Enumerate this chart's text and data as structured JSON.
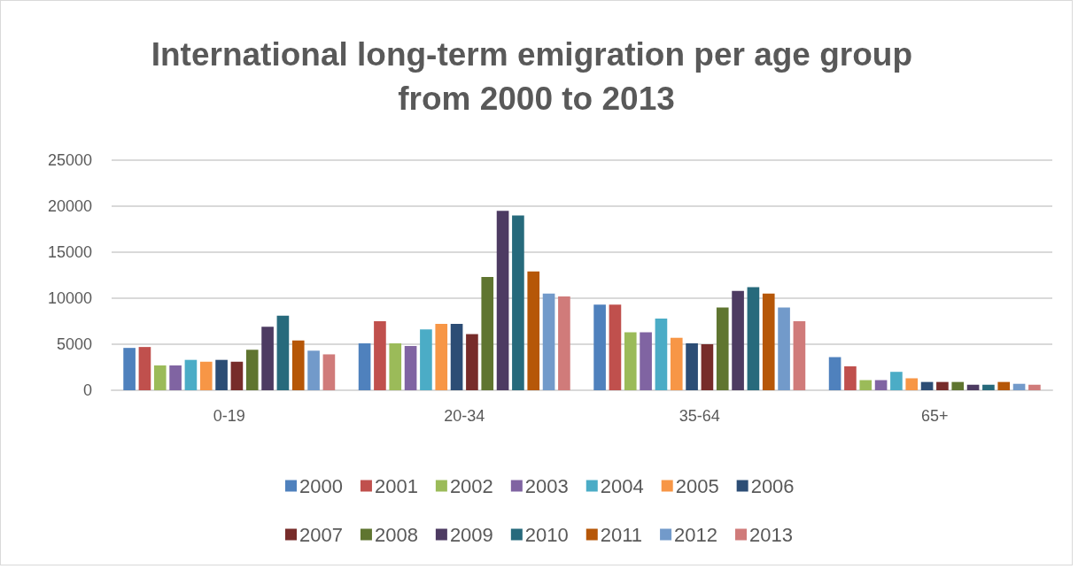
{
  "chart_data": {
    "type": "bar",
    "title": "International long-term emigration per age group from 2000 to 2013",
    "categories": [
      "0-19",
      "20-34",
      "35-64",
      "65+"
    ],
    "series": [
      {
        "name": "2000",
        "color": "#4f81bd",
        "values": [
          4600,
          5100,
          9300,
          3600
        ]
      },
      {
        "name": "2001",
        "color": "#c0504d",
        "values": [
          4700,
          7500,
          9300,
          2600
        ]
      },
      {
        "name": "2002",
        "color": "#9bbb59",
        "values": [
          2700,
          5100,
          6300,
          1100
        ]
      },
      {
        "name": "2003",
        "color": "#8064a2",
        "values": [
          2700,
          4800,
          6300,
          1100
        ]
      },
      {
        "name": "2004",
        "color": "#4bacc6",
        "values": [
          3300,
          6600,
          7800,
          2000
        ]
      },
      {
        "name": "2005",
        "color": "#f79646",
        "values": [
          3100,
          7200,
          5700,
          1300
        ]
      },
      {
        "name": "2006",
        "color": "#2c4d75",
        "values": [
          3300,
          7200,
          5100,
          900
        ]
      },
      {
        "name": "2007",
        "color": "#772c2a",
        "values": [
          3100,
          6100,
          5000,
          900
        ]
      },
      {
        "name": "2008",
        "color": "#5f7530",
        "values": [
          4400,
          12300,
          9000,
          900
        ]
      },
      {
        "name": "2009",
        "color": "#4d3b62",
        "values": [
          6900,
          19500,
          10800,
          600
        ]
      },
      {
        "name": "2010",
        "color": "#276a7c",
        "values": [
          8100,
          19000,
          11200,
          600
        ]
      },
      {
        "name": "2011",
        "color": "#b65708",
        "values": [
          5400,
          12900,
          10500,
          900
        ]
      },
      {
        "name": "2012",
        "color": "#729aca",
        "values": [
          4300,
          10500,
          9000,
          700
        ]
      },
      {
        "name": "2013",
        "color": "#d07b7a",
        "values": [
          3900,
          10200,
          7500,
          600
        ]
      }
    ],
    "ylim": [
      0,
      25000
    ],
    "yticks": [
      0,
      5000,
      10000,
      15000,
      20000,
      25000
    ],
    "grid": "y",
    "legend": "bottom"
  }
}
